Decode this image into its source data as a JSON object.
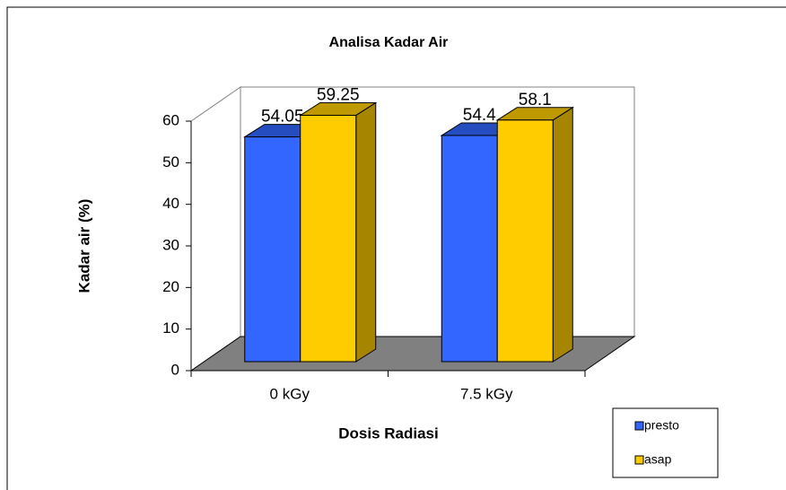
{
  "chart_data": {
    "type": "bar3d",
    "title": "Analisa Kadar Air",
    "x_label": "Dosis Radiasi",
    "y_label": "Kadar air (%)",
    "categories": [
      "0 kGy",
      "7.5 kGy"
    ],
    "series": [
      {
        "name": "presto",
        "color": "#3366ff",
        "values": [
          54.05,
          54.4
        ]
      },
      {
        "name": "asap",
        "color": "#ffcc00",
        "values": [
          59.25,
          58.1
        ]
      }
    ],
    "ylim": [
      0,
      60
    ],
    "yticks": [
      0,
      10,
      20,
      30,
      40,
      50,
      60
    ],
    "grid": false,
    "legend": "bottom-right"
  }
}
